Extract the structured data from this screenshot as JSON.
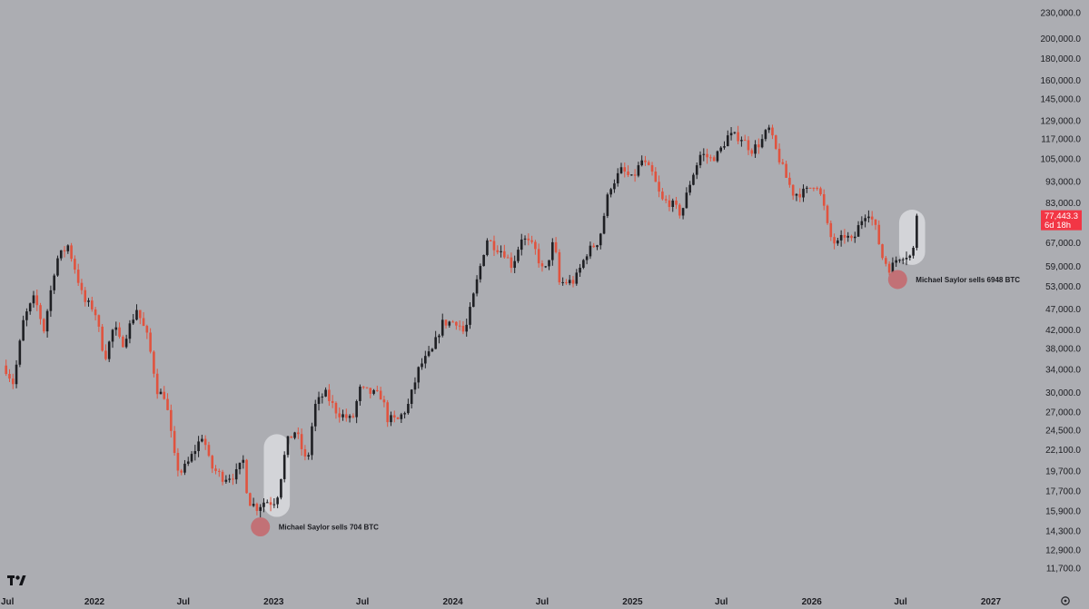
{
  "chart_data": {
    "type": "candlestick",
    "interval": "weekly",
    "scale": "log",
    "ylim": [
      11000,
      235000
    ],
    "xlim": [
      "2021-07-01",
      "2027-03-15"
    ],
    "y_ticks": [
      "230,000.0",
      "200,000.0",
      "180,000.0",
      "160,000.0",
      "145,000.0",
      "129,000.0",
      "117,000.0",
      "105,000.0",
      "93,000.0",
      "83,000.0",
      "67,000.0",
      "59,000.0",
      "53,000.0",
      "47,000.0",
      "42,000.0",
      "38,000.0",
      "34,000.0",
      "30,000.0",
      "27,000.0",
      "24,500.0",
      "22,100.0",
      "19,700.0",
      "17,700.0",
      "15,900.0",
      "14,300.0",
      "12,900.0",
      "11,700.0"
    ],
    "x_ticks": [
      {
        "label": "Jul",
        "date": "2021-07-01"
      },
      {
        "label": "2022",
        "date": "2022-01-01"
      },
      {
        "label": "Jul",
        "date": "2022-07-01"
      },
      {
        "label": "2023",
        "date": "2023-01-01"
      },
      {
        "label": "Jul",
        "date": "2023-07-01"
      },
      {
        "label": "2024",
        "date": "2024-01-01"
      },
      {
        "label": "Jul",
        "date": "2024-07-01"
      },
      {
        "label": "2025",
        "date": "2025-01-01"
      },
      {
        "label": "Jul",
        "date": "2025-07-01"
      },
      {
        "label": "2026",
        "date": "2026-01-01"
      },
      {
        "label": "Jul",
        "date": "2026-07-01"
      },
      {
        "label": "2027",
        "date": "2027-01-01"
      }
    ],
    "close_path": [
      [
        "2021-07-05",
        34000
      ],
      [
        "2021-07-20",
        31500
      ],
      [
        "2021-08-10",
        44500
      ],
      [
        "2021-09-01",
        50000
      ],
      [
        "2021-09-20",
        42000
      ],
      [
        "2021-10-15",
        61000
      ],
      [
        "2021-11-08",
        66000
      ],
      [
        "2021-11-25",
        57000
      ],
      [
        "2021-12-10",
        49000
      ],
      [
        "2022-01-01",
        47000
      ],
      [
        "2022-01-22",
        36000
      ],
      [
        "2022-02-10",
        43000
      ],
      [
        "2022-02-25",
        38500
      ],
      [
        "2022-03-28",
        47000
      ],
      [
        "2022-04-20",
        40000
      ],
      [
        "2022-05-10",
        30000
      ],
      [
        "2022-05-25",
        29500
      ],
      [
        "2022-06-15",
        20500
      ],
      [
        "2022-06-25",
        19500
      ],
      [
        "2022-07-10",
        20500
      ],
      [
        "2022-08-10",
        24000
      ],
      [
        "2022-08-25",
        20200
      ],
      [
        "2022-09-20",
        19000
      ],
      [
        "2022-10-15",
        19300
      ],
      [
        "2022-10-31",
        20800
      ],
      [
        "2022-11-10",
        16800
      ],
      [
        "2022-11-28",
        16200
      ],
      [
        "2022-12-15",
        16800
      ],
      [
        "2022-12-31",
        16600
      ],
      [
        "2023-01-10",
        17500
      ],
      [
        "2023-01-28",
        23000
      ],
      [
        "2023-02-15",
        24500
      ],
      [
        "2023-03-10",
        20300
      ],
      [
        "2023-03-25",
        27800
      ],
      [
        "2023-04-15",
        30000
      ],
      [
        "2023-05-10",
        27000
      ],
      [
        "2023-06-10",
        25800
      ],
      [
        "2023-06-25",
        30500
      ],
      [
        "2023-07-15",
        30000
      ],
      [
        "2023-08-10",
        29400
      ],
      [
        "2023-08-20",
        26100
      ],
      [
        "2023-09-10",
        25800
      ],
      [
        "2023-10-01",
        27800
      ],
      [
        "2023-10-25",
        34500
      ],
      [
        "2023-11-20",
        37500
      ],
      [
        "2023-12-10",
        43500
      ],
      [
        "2024-01-10",
        44000
      ],
      [
        "2024-01-25",
        41000
      ],
      [
        "2024-02-15",
        52000
      ],
      [
        "2024-03-10",
        68500
      ],
      [
        "2024-03-25",
        66000
      ],
      [
        "2024-04-15",
        63500
      ],
      [
        "2024-05-01",
        59000
      ],
      [
        "2024-05-20",
        69000
      ],
      [
        "2024-06-15",
        65000
      ],
      [
        "2024-07-05",
        56500
      ],
      [
        "2024-07-25",
        68000
      ],
      [
        "2024-08-05",
        54000
      ],
      [
        "2024-09-05",
        54500
      ],
      [
        "2024-09-30",
        63500
      ],
      [
        "2024-10-25",
        68000
      ],
      [
        "2024-11-15",
        90000
      ],
      [
        "2024-12-10",
        99000
      ],
      [
        "2024-12-31",
        94000
      ],
      [
        "2025-01-20",
        104000
      ],
      [
        "2025-02-10",
        97000
      ],
      [
        "2025-03-01",
        84000
      ],
      [
        "2025-03-20",
        83000
      ],
      [
        "2025-04-10",
        78000
      ],
      [
        "2025-04-30",
        94000
      ],
      [
        "2025-05-20",
        108000
      ],
      [
        "2025-06-10",
        105000
      ],
      [
        "2025-06-25",
        108000
      ],
      [
        "2025-07-15",
        119000
      ],
      [
        "2025-08-10",
        118000
      ],
      [
        "2025-08-31",
        110000
      ],
      [
        "2025-09-20",
        115000
      ],
      [
        "2025-10-05",
        124000
      ],
      [
        "2025-10-20",
        110000
      ],
      [
        "2025-11-10",
        95000
      ],
      [
        "2025-11-25",
        87000
      ],
      [
        "2025-12-20",
        88000
      ],
      [
        "2026-01-10",
        93000
      ],
      [
        "2026-01-25",
        82000
      ],
      [
        "2026-02-05",
        70000
      ],
      [
        "2026-02-20",
        66000
      ],
      [
        "2026-03-10",
        70000
      ],
      [
        "2026-03-25",
        67000
      ],
      [
        "2026-04-10",
        75000
      ],
      [
        "2026-04-25",
        80000
      ],
      [
        "2026-05-10",
        73000
      ],
      [
        "2026-05-25",
        62000
      ],
      [
        "2026-06-10",
        58000
      ],
      [
        "2026-06-25",
        62000
      ],
      [
        "2026-07-10",
        63000
      ],
      [
        "2026-07-25",
        62000
      ],
      [
        "2026-08-05",
        77443.3
      ]
    ],
    "last_price": {
      "value": "77,443.3",
      "countdown": "6d 18h",
      "color": "#f23645"
    },
    "candle_colors": {
      "up": "#1e1f23",
      "down": "#e0533f"
    },
    "annotations": [
      {
        "text": "Michael Saylor sells 704 BTC",
        "date": "2022-12-05",
        "price": 14600
      },
      {
        "text": "Michael Saylor sells 6948 BTC",
        "date": "2026-06-25",
        "price": 55000
      }
    ],
    "highlights": [
      {
        "start": "2022-12-12",
        "end": "2023-02-03",
        "low": 15400,
        "high": 24000
      },
      {
        "start": "2026-06-28",
        "end": "2026-08-20",
        "low": 59500,
        "high": 80000
      }
    ],
    "colors": {
      "background": "#acadb2",
      "text": "#1c1d22",
      "marker": "#c46a6f"
    }
  }
}
